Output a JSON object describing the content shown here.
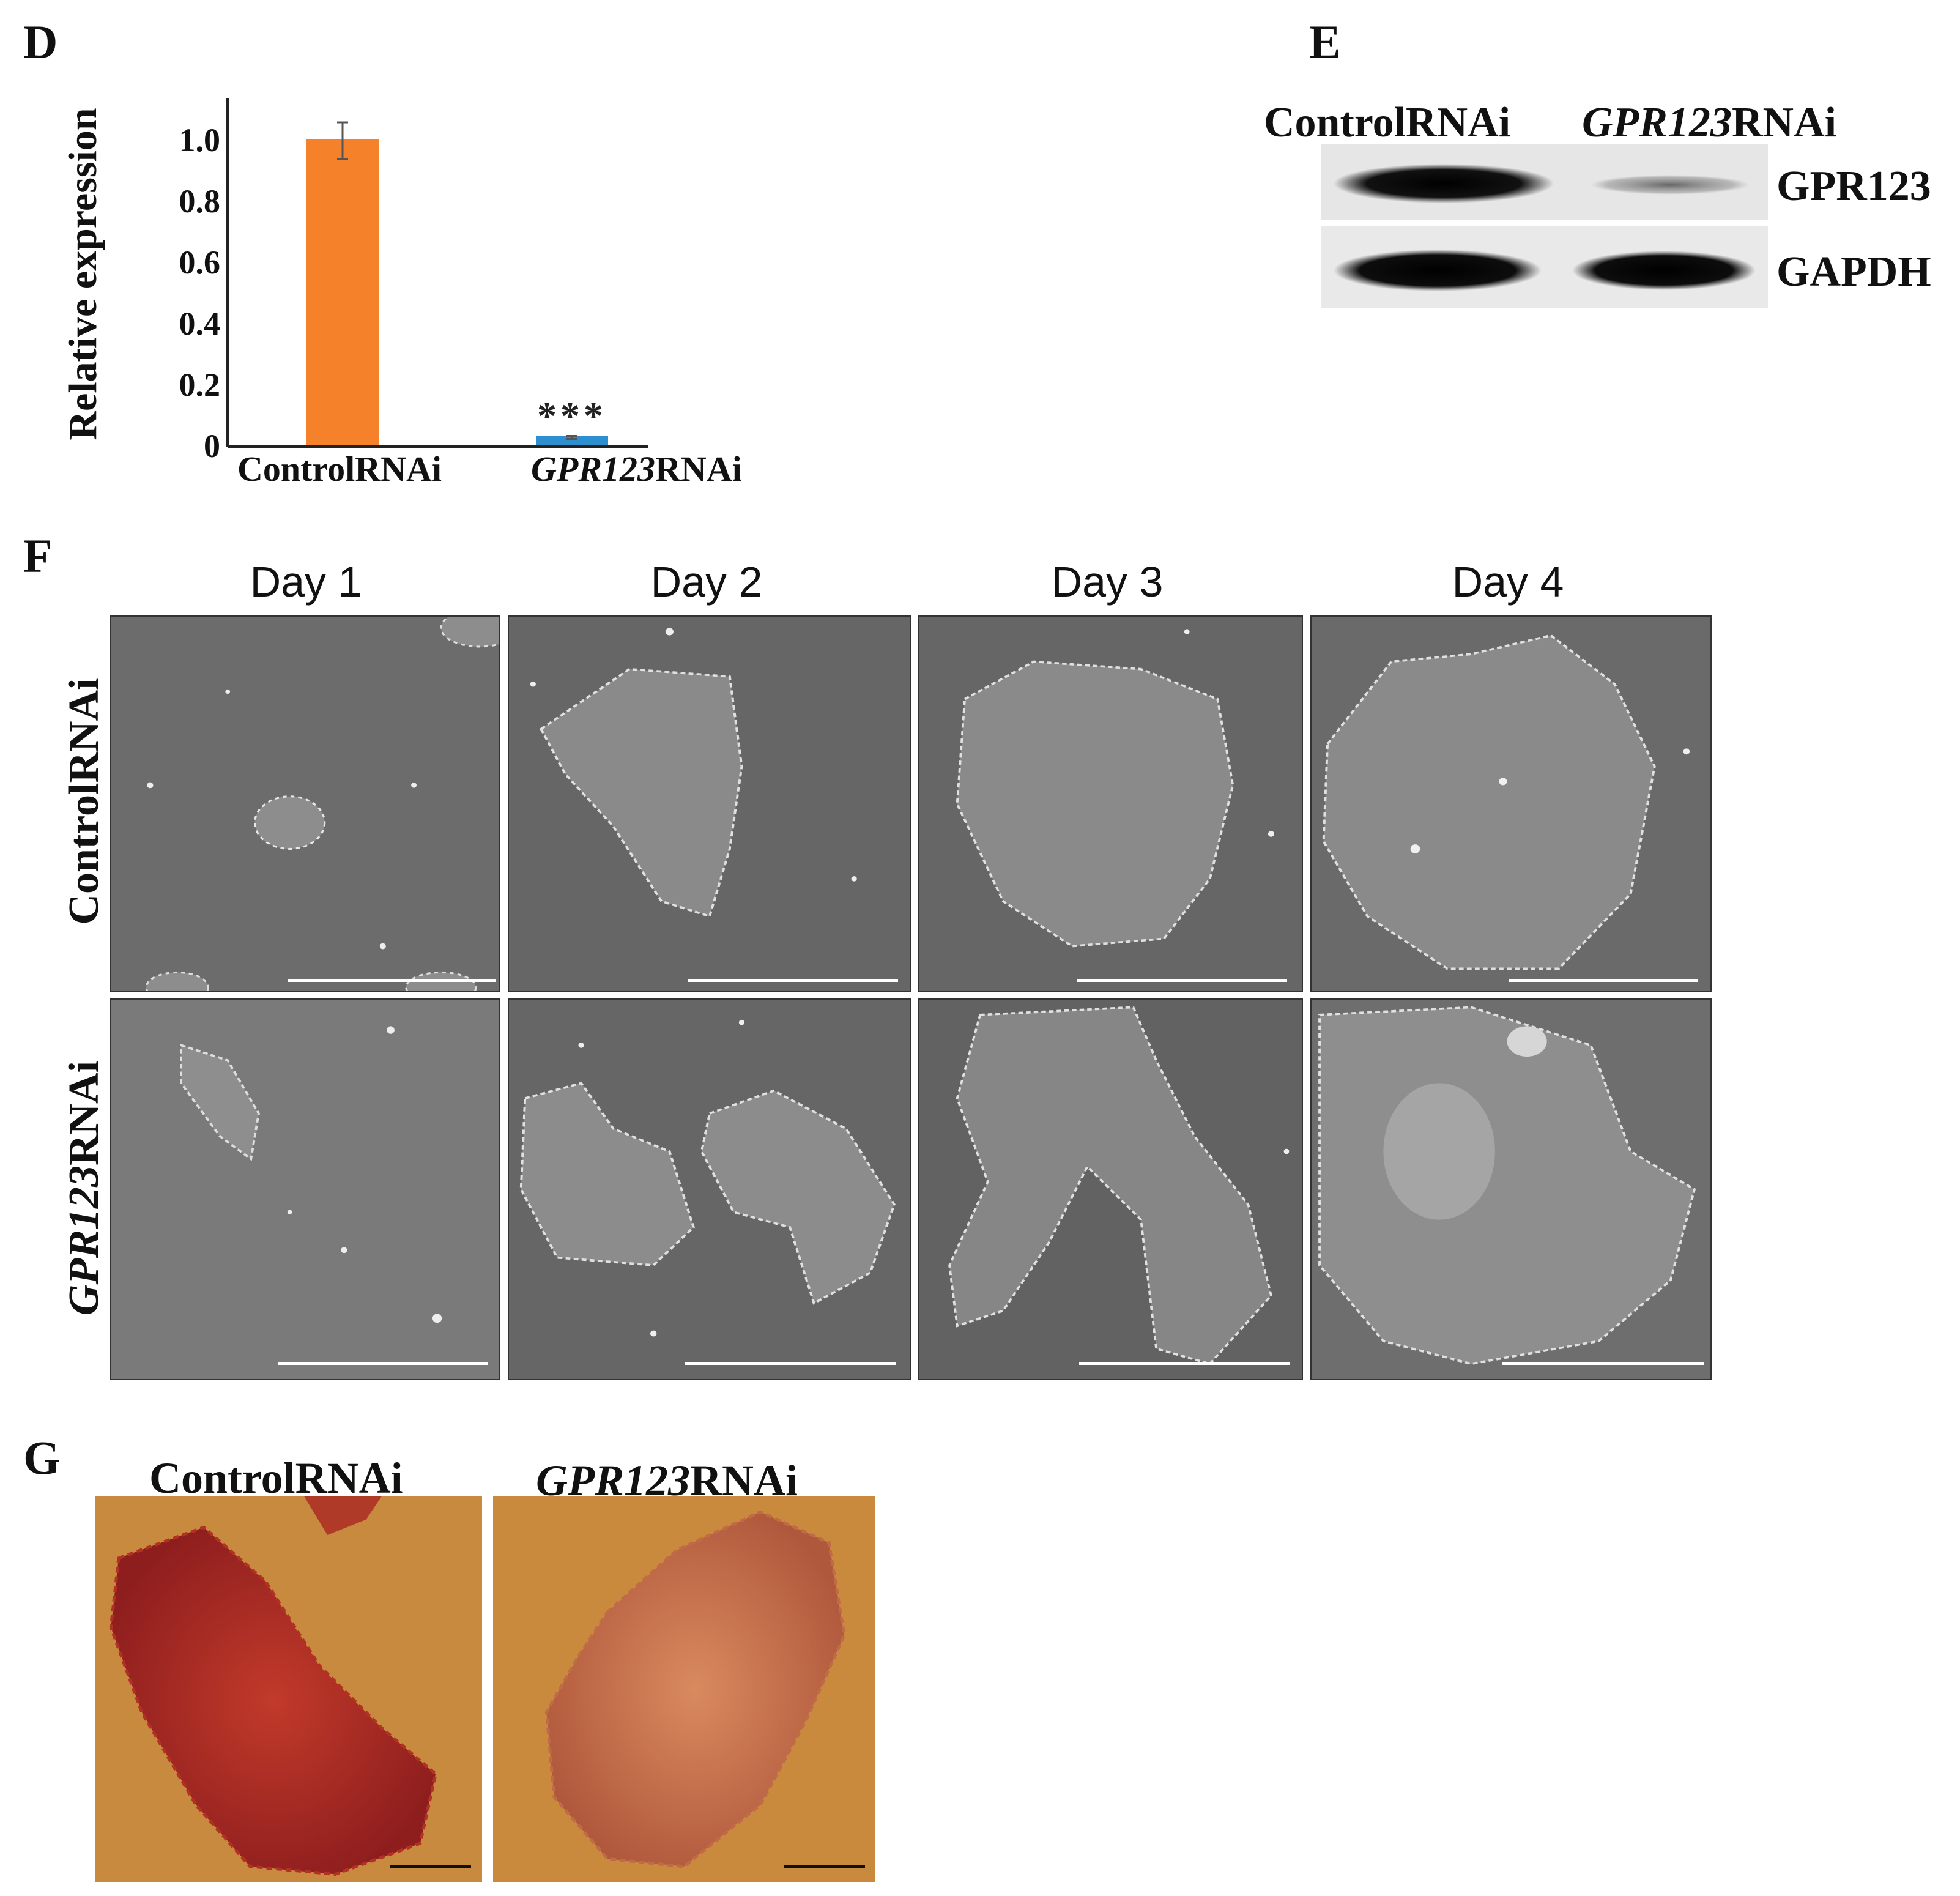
{
  "panel_labels": {
    "d": "D",
    "e": "E",
    "f": "F",
    "g": "G"
  },
  "panel_d": {
    "chart_data": {
      "type": "bar",
      "categories": [
        "ControlRNAi",
        "GPR123RNAi"
      ],
      "category_parts": [
        {
          "italic": "",
          "plain": "ControlRNAi"
        },
        {
          "italic": "GPR123",
          "plain": "RNAi"
        }
      ],
      "values": [
        1.0,
        0.03
      ],
      "errors": [
        0.06,
        0.005
      ],
      "bar_colors": [
        "#F5822A",
        "#2E8FD0"
      ],
      "annotations": [
        "",
        "***"
      ],
      "ylabel": "Relative expression",
      "yticks": [
        "0",
        "0.2",
        "0.4",
        "0.6",
        "0.8",
        "1.0"
      ],
      "ytick_values": [
        0,
        0.2,
        0.4,
        0.6,
        0.8,
        1.0
      ],
      "ylim": [
        0,
        1.2
      ]
    }
  },
  "panel_e": {
    "lanes": [
      {
        "italic": "",
        "plain": "ControlRNAi"
      },
      {
        "italic": "GPR123",
        "plain": "RNAi"
      }
    ],
    "bands": [
      "GPR123",
      "GAPDH"
    ]
  },
  "panel_f": {
    "days": [
      "Day 1",
      "Day 2",
      "Day 3",
      "Day 4"
    ],
    "rows": [
      {
        "italic": "",
        "plain": "ControlRNAi"
      },
      {
        "italic": "GPR123",
        "plain": "RNAi"
      }
    ]
  },
  "panel_g": {
    "labels": [
      {
        "italic": "",
        "plain": "ControlRNAi"
      },
      {
        "italic": "GPR123",
        "plain": "RNAi"
      }
    ]
  },
  "colors": {
    "bar_control": "#F5822A",
    "bar_knockdown": "#2E8FD0",
    "stain": "#C0392B",
    "stain_bg": "#C98A3A"
  }
}
